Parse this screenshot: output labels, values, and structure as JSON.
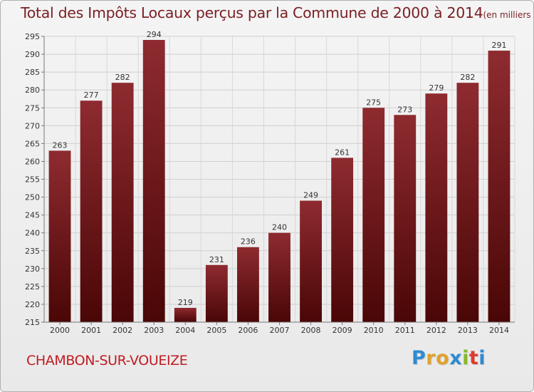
{
  "chart_data": {
    "type": "bar",
    "title": "Total des Impôts Locaux perçus par la Commune de 2000 à 2014",
    "title_unit": "(en milliers d'€)",
    "categories": [
      "2000",
      "2001",
      "2002",
      "2003",
      "2004",
      "2005",
      "2006",
      "2007",
      "2008",
      "2009",
      "2010",
      "2011",
      "2012",
      "2013",
      "2014"
    ],
    "values": [
      263,
      277,
      282,
      294,
      219,
      231,
      236,
      240,
      249,
      261,
      275,
      273,
      279,
      282,
      291
    ],
    "ylim": [
      215,
      295
    ],
    "yticks": [
      215,
      220,
      225,
      230,
      235,
      240,
      245,
      250,
      255,
      260,
      265,
      270,
      275,
      280,
      285,
      290,
      295
    ],
    "grid": true,
    "bar_color": "#7a1a1f",
    "bar_color_light": "#8e2b30",
    "bar_color_dark": "#4a0606"
  },
  "commune": "CHAMBON-SUR-VOUEIZE",
  "logo": {
    "letters": [
      "P",
      "r",
      "o",
      "x",
      "i",
      "t",
      "i"
    ],
    "colors": [
      "#2e8bd1",
      "#e0a12a",
      "#e0a12a",
      "#2e8bd1",
      "#88b82e",
      "#e03a2e",
      "#2e8bd1"
    ]
  }
}
